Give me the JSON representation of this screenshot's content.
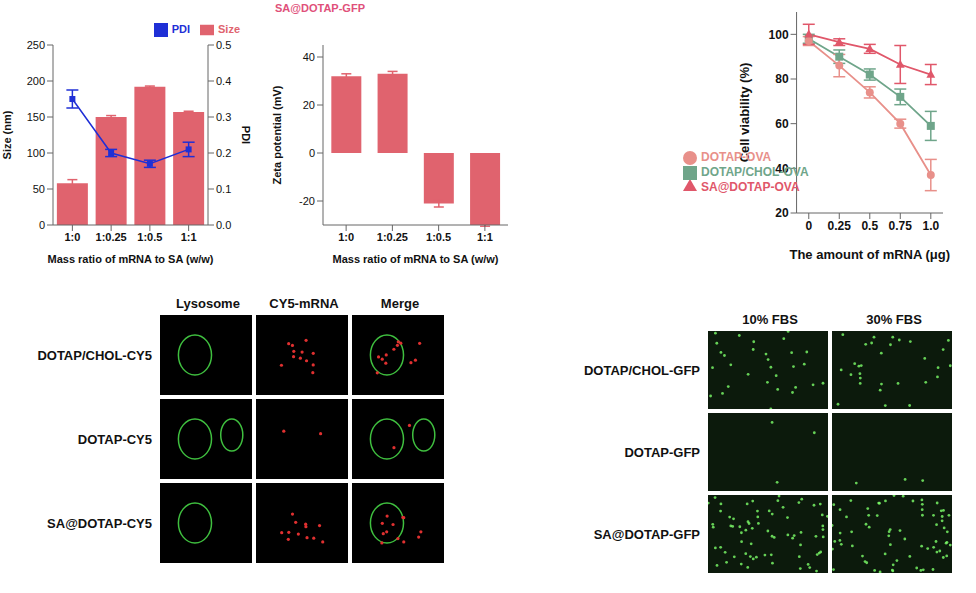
{
  "chart_data": [
    {
      "type": "bar",
      "title": "SA@DOTAP-GFP",
      "x_label": "Mass ratio of mRNA to SA (w/w)",
      "y_label": "Size (nm)",
      "y2_label": "PDI",
      "categories": [
        "1:0",
        "1:0.25",
        "1:0.5",
        "1:1"
      ],
      "series": [
        {
          "name": "Size",
          "type": "bar",
          "color": "#e0636e",
          "values": [
            58,
            150,
            192,
            157
          ],
          "errors": [
            5,
            2,
            1,
            1
          ]
        },
        {
          "name": "PDI",
          "type": "line",
          "axis": "y2",
          "color": "#1f2fd6",
          "marker": "square",
          "values": [
            0.35,
            0.2,
            0.17,
            0.21
          ],
          "errors": [
            0.025,
            0.01,
            0.01,
            0.02
          ]
        }
      ],
      "ylim": [
        0,
        250
      ],
      "yticks": [
        0,
        50,
        100,
        150,
        200,
        250
      ],
      "y2lim": [
        0,
        0.5
      ],
      "y2ticks": [
        {
          "value": 0,
          "label": "0.0"
        },
        0.1,
        0.2,
        0.3,
        0.4,
        0.5
      ],
      "legend": "upper right"
    },
    {
      "type": "bar",
      "x_label": "Mass ratio of mRNA to SA (w/w)",
      "y_label": "Zeta potential (mV)",
      "categories": [
        "1:0",
        "1:0.25",
        "1:0.5",
        "1:1"
      ],
      "values": [
        32,
        33,
        -21,
        -30
      ],
      "errors": [
        1,
        1,
        1.5,
        0.5
      ],
      "color": "#e0636e",
      "ylim": [
        -30,
        45
      ],
      "yticks": [
        -20,
        0,
        20,
        40
      ]
    },
    {
      "type": "line",
      "x_label": "The amount of mRNA (μg)",
      "y_label": "Cell viability (%)",
      "x": [
        0,
        0.25,
        0.5,
        0.75,
        1
      ],
      "series": [
        {
          "name": "DOTAP/CHOL-OVA",
          "color": "#6fa58a",
          "marker": "square",
          "line_style": "solid",
          "values": [
            98,
            90,
            82,
            72,
            59
          ],
          "errors": [
            2,
            3,
            2.5,
            3.5,
            6.5
          ]
        },
        {
          "name": "DOTAP-OVA",
          "color": "#e8908a",
          "marker": "circle",
          "line_style": "solid",
          "values": [
            97,
            86,
            74,
            60,
            37
          ],
          "errors": [
            2,
            5,
            2.5,
            2,
            7
          ]
        },
        {
          "name": "SA@DOTAP-OVA",
          "color": "#e0576a",
          "marker": "triangle",
          "line_style": "solid",
          "values": [
            100,
            96.5,
            93.5,
            86.5,
            82
          ],
          "errors": [
            4.5,
            1.5,
            2,
            8.5,
            4.5
          ]
        }
      ],
      "xlim": [
        -0.1,
        1.1
      ],
      "xticks": [
        0,
        0.25,
        0.5,
        0.75,
        {
          "value": 1,
          "label": "1.0"
        }
      ],
      "ylim": [
        20,
        110
      ],
      "yticks": [
        20,
        40,
        60,
        80,
        100
      ],
      "legend": "lower left"
    },
    {
      "type": "image_grid",
      "columns": [
        "Lysosome",
        "CY5-mRNA",
        "Merge"
      ],
      "rows": [
        "DOTAP/CHOL-CY5",
        "DOTAP-CY5",
        "SA@DOTAP-CY5"
      ]
    },
    {
      "type": "image_grid",
      "columns": [
        "10% FBS",
        "30% FBS"
      ],
      "rows": [
        "DOTAP/CHOL-GFP",
        "DOTAP-GFP",
        "SA@DOTAP-GFP"
      ]
    }
  ]
}
